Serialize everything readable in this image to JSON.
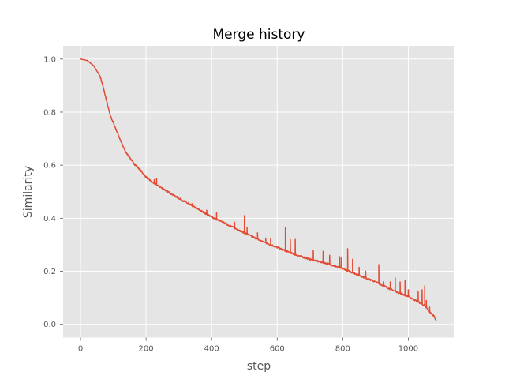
{
  "chart_data": {
    "type": "line",
    "title": "Merge history",
    "xlabel": "step",
    "ylabel": "Similarity",
    "xlim": [
      -53,
      1141
    ],
    "ylim": [
      -0.05,
      1.05
    ],
    "xticks": [
      0,
      200,
      400,
      600,
      800,
      1000
    ],
    "yticks": [
      0.0,
      0.2,
      0.4,
      0.6,
      0.8,
      1.0
    ],
    "xtick_labels": [
      "0",
      "200",
      "400",
      "600",
      "800",
      "1000"
    ],
    "ytick_labels": [
      "0.0",
      "0.2",
      "0.4",
      "0.6",
      "0.8",
      "1.0"
    ],
    "grid": true,
    "style": "ggplot",
    "colors": {
      "background": "#e5e5e5",
      "grid": "#ffffff",
      "line": "#e24a33",
      "text": "#555555"
    },
    "series": [
      {
        "baseline": {
          "x": [
            0,
            20,
            40,
            60,
            70,
            80,
            90,
            100,
            110,
            120,
            130,
            140,
            150,
            160,
            180,
            200,
            220,
            240,
            260,
            280,
            300,
            350,
            400,
            450,
            500,
            550,
            600,
            650,
            700,
            750,
            800,
            850,
            900,
            950,
            1000,
            1030,
            1050,
            1060,
            1070,
            1080,
            1085
          ],
          "y": [
            1.0,
            0.995,
            0.975,
            0.935,
            0.89,
            0.84,
            0.79,
            0.76,
            0.73,
            0.7,
            0.67,
            0.645,
            0.63,
            0.61,
            0.585,
            0.555,
            0.535,
            0.52,
            0.505,
            0.49,
            0.475,
            0.44,
            0.405,
            0.375,
            0.345,
            0.315,
            0.29,
            0.265,
            0.245,
            0.23,
            0.21,
            0.185,
            0.16,
            0.13,
            0.105,
            0.085,
            0.07,
            0.055,
            0.04,
            0.03,
            0.01
          ]
        },
        "spikes": {
          "x": [
            225,
            232,
            305,
            330,
            340,
            385,
            415,
            470,
            500,
            508,
            540,
            565,
            580,
            625,
            640,
            655,
            710,
            740,
            760,
            790,
            795,
            815,
            830,
            850,
            870,
            910,
            925,
            945,
            960,
            975,
            990,
            1000,
            1030,
            1042,
            1050,
            1055,
            1065
          ],
          "y": [
            0.545,
            0.55,
            0.475,
            0.46,
            0.455,
            0.43,
            0.42,
            0.385,
            0.41,
            0.365,
            0.345,
            0.325,
            0.325,
            0.365,
            0.32,
            0.32,
            0.28,
            0.275,
            0.26,
            0.255,
            0.25,
            0.285,
            0.245,
            0.215,
            0.2,
            0.225,
            0.16,
            0.16,
            0.175,
            0.16,
            0.165,
            0.13,
            0.125,
            0.13,
            0.145,
            0.09,
            0.065
          ]
        }
      }
    ]
  }
}
